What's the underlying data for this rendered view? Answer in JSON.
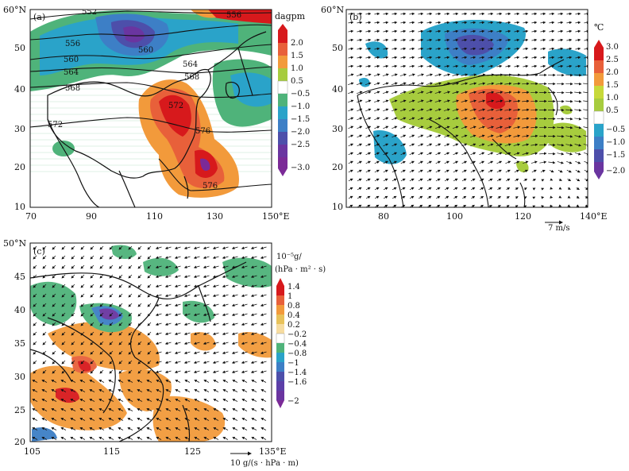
{
  "panel_a": {
    "tag": "(a)",
    "y_axis_unit": "60°N",
    "y_ticks": [
      "60",
      "50",
      "40",
      "30",
      "20",
      "10"
    ],
    "x_ticks": [
      "70",
      "90",
      "110",
      "130",
      "150°E"
    ],
    "colorbar_unit": "dagpm",
    "colorbar_labels": [
      "2.0",
      "1.5",
      "1.0",
      "0.5",
      "−0.5",
      "−1.0",
      "−1.5",
      "−2.0",
      "−2.5",
      "−3.0"
    ],
    "colorbar_colors": [
      "#d7191c",
      "#e8603a",
      "#f29a3b",
      "#a7cc3e",
      "#ffffff",
      "#4fb37a",
      "#2aa3c9",
      "#3d7fc6",
      "#4d4faa",
      "#6a35a0",
      "#7b2a97"
    ],
    "contours": [
      "552",
      "556",
      "556",
      "560",
      "560",
      "564",
      "564",
      "568",
      "568",
      "572",
      "572",
      "576",
      "576"
    ]
  },
  "panel_b": {
    "tag": "(b)",
    "y_axis_unit": "60°N",
    "y_ticks": [
      "60",
      "50",
      "40",
      "30",
      "20",
      "10"
    ],
    "x_ticks": [
      "80",
      "100",
      "120",
      "140°E"
    ],
    "colorbar_unit": "℃",
    "colorbar_labels": [
      "3.0",
      "2.5",
      "2.0",
      "1.5",
      "1.0",
      "0.5",
      "−0.5",
      "−1.0",
      "−1.5",
      "−2.0"
    ],
    "vector_ref": "7 m/s"
  },
  "panel_c": {
    "tag": "(c)",
    "y_axis_unit": "50°N",
    "y_ticks": [
      "50",
      "45",
      "40",
      "35",
      "30",
      "25",
      "20"
    ],
    "x_ticks": [
      "105",
      "115",
      "125",
      "135°E"
    ],
    "colorbar_unit_line1": "10⁻⁵g/",
    "colorbar_unit_line2": "(hPa · m² · s)",
    "colorbar_labels": [
      "1.4",
      "1",
      "0.8",
      "0.4",
      "0.2",
      "−0.2",
      "−0.4",
      "−0.8",
      "−1",
      "−1.4",
      "−1.6",
      "−2"
    ],
    "vector_ref": "10 g/(s · hPa · m)"
  }
}
